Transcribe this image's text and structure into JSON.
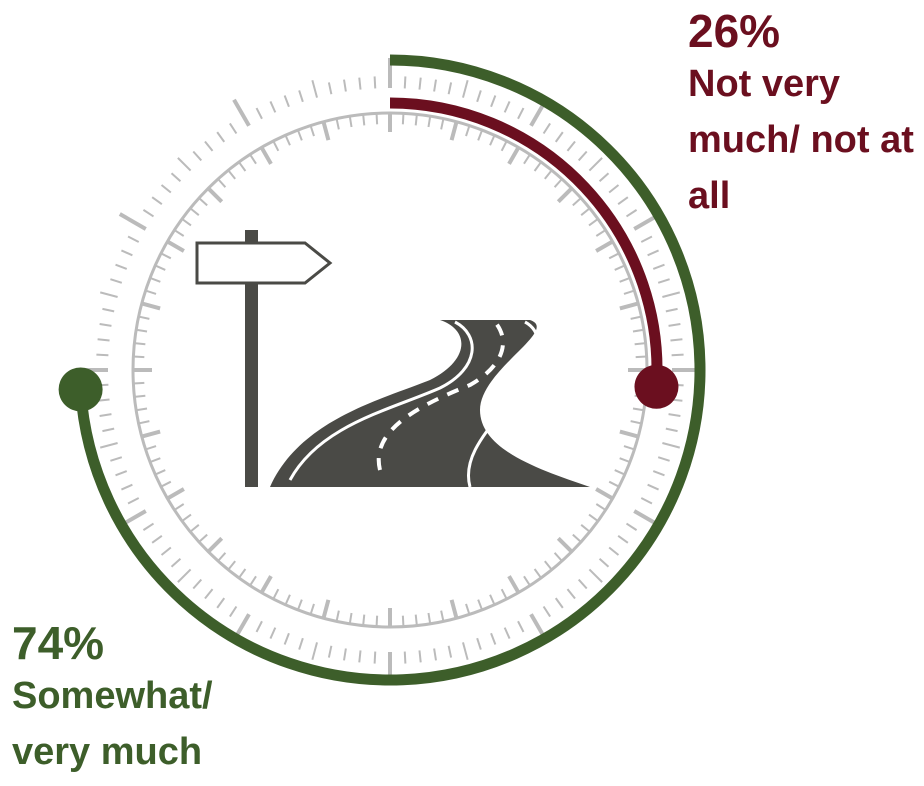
{
  "chart_data": {
    "type": "radial",
    "categories": [
      "Somewhat/ very much",
      "Not very much/ not at all"
    ],
    "values": [
      74,
      26
    ],
    "value_labels": [
      "74%",
      "26%"
    ],
    "colors": [
      "#3d5e2a",
      "#6b0f1f"
    ],
    "ylim": [
      0,
      100
    ]
  }
}
